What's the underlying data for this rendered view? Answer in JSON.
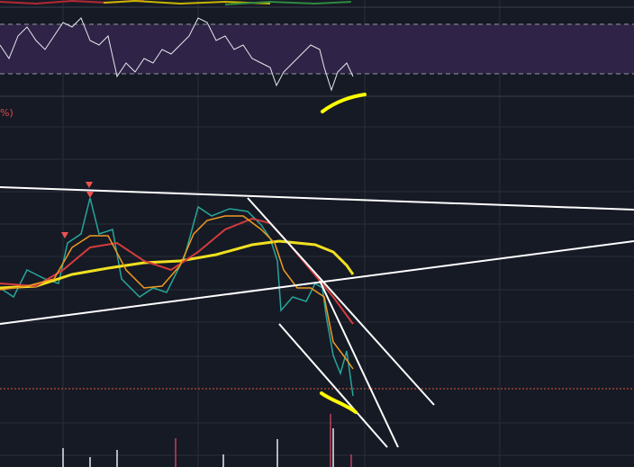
{
  "indicator_label": "%)"
}
